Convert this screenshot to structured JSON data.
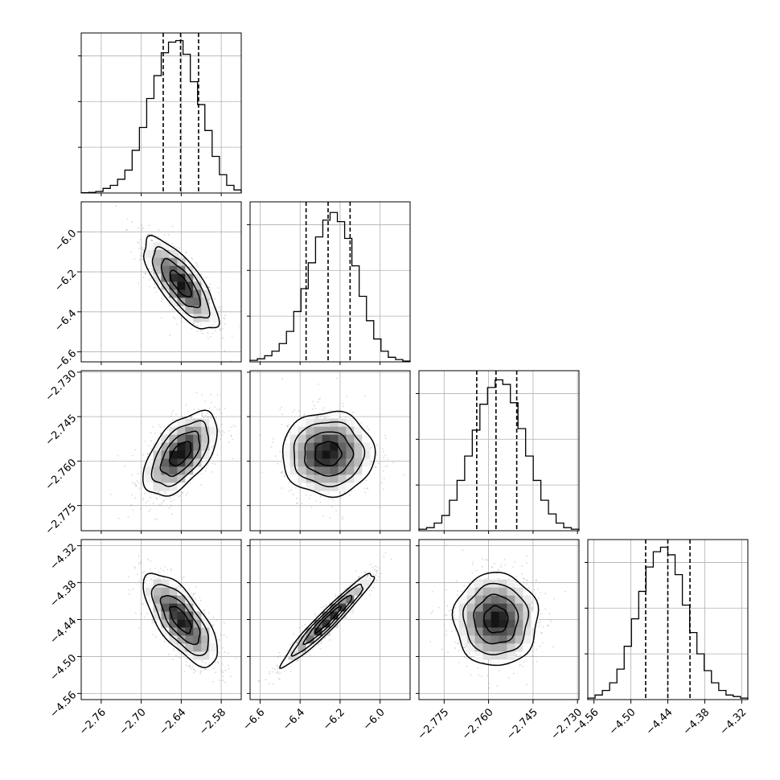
{
  "chart_data": {
    "type": "corner",
    "colors": {
      "frame": "#000000",
      "grid": "#b0b0b0",
      "quantile_line": "#000000",
      "scatter": "#666666",
      "density_max": "#000000"
    },
    "grid": true,
    "parameters": [
      {
        "range": [
          -2.79,
          -2.55
        ],
        "ticks": [
          -2.76,
          -2.7,
          -2.64,
          -2.58
        ],
        "tick_labels": [
          "−2.76",
          "−2.70",
          "−2.64",
          "−2.58"
        ]
      },
      {
        "range": [
          -6.65,
          -5.85
        ],
        "ticks": [
          -6.6,
          -6.4,
          -6.2,
          -6.0
        ],
        "tick_labels": [
          "−6.6",
          "−6.4",
          "−6.2",
          "−6.0"
        ]
      },
      {
        "range": [
          -2.7835,
          -2.7295
        ],
        "ticks": [
          -2.775,
          -2.76,
          -2.745,
          -2.73
        ],
        "tick_labels": [
          "−2.775",
          "−2.760",
          "−2.745",
          "−2.730"
        ]
      },
      {
        "range": [
          -4.57,
          -4.31
        ],
        "ticks": [
          -4.56,
          -4.5,
          -4.44,
          -4.38,
          -4.32
        ],
        "tick_labels": [
          "−4.56",
          "−4.50",
          "−4.44",
          "−4.38",
          "−4.32"
        ]
      }
    ],
    "quantiles": [
      [
        -2.667,
        -2.641,
        -2.614
      ],
      [
        -6.37,
        -6.26,
        -6.15
      ],
      [
        -2.764,
        -2.7575,
        -2.7505
      ],
      [
        -4.476,
        -4.44,
        -4.404
      ]
    ],
    "histograms": [
      {
        "counts": [
          0.002,
          0.004,
          0.01,
          0.03,
          0.05,
          0.09,
          0.15,
          0.28,
          0.43,
          0.62,
          0.77,
          0.92,
          0.99,
          1.0,
          0.91,
          0.73,
          0.58,
          0.41,
          0.24,
          0.12,
          0.05,
          0.02
        ]
      },
      {
        "counts": [
          0.01,
          0.02,
          0.04,
          0.07,
          0.12,
          0.2,
          0.33,
          0.48,
          0.65,
          0.82,
          0.93,
          0.98,
          0.92,
          0.81,
          0.63,
          0.43,
          0.27,
          0.15,
          0.07,
          0.03,
          0.015,
          0.005
        ]
      },
      {
        "counts": [
          0.01,
          0.02,
          0.05,
          0.1,
          0.2,
          0.33,
          0.49,
          0.66,
          0.83,
          0.94,
          0.99,
          0.96,
          0.84,
          0.67,
          0.49,
          0.33,
          0.2,
          0.11,
          0.05,
          0.02,
          0.01
        ]
      },
      {
        "counts": [
          0.01,
          0.03,
          0.06,
          0.11,
          0.2,
          0.35,
          0.53,
          0.71,
          0.87,
          0.97,
          1.0,
          0.95,
          0.82,
          0.62,
          0.44,
          0.3,
          0.19,
          0.11,
          0.06,
          0.03,
          0.02,
          0.01
        ]
      }
    ],
    "correlations": {
      "1-0": -0.75,
      "2-0": 0.55,
      "2-1": 0.0,
      "3-0": -0.7,
      "3-1": 0.96,
      "3-2": 0.0
    }
  }
}
